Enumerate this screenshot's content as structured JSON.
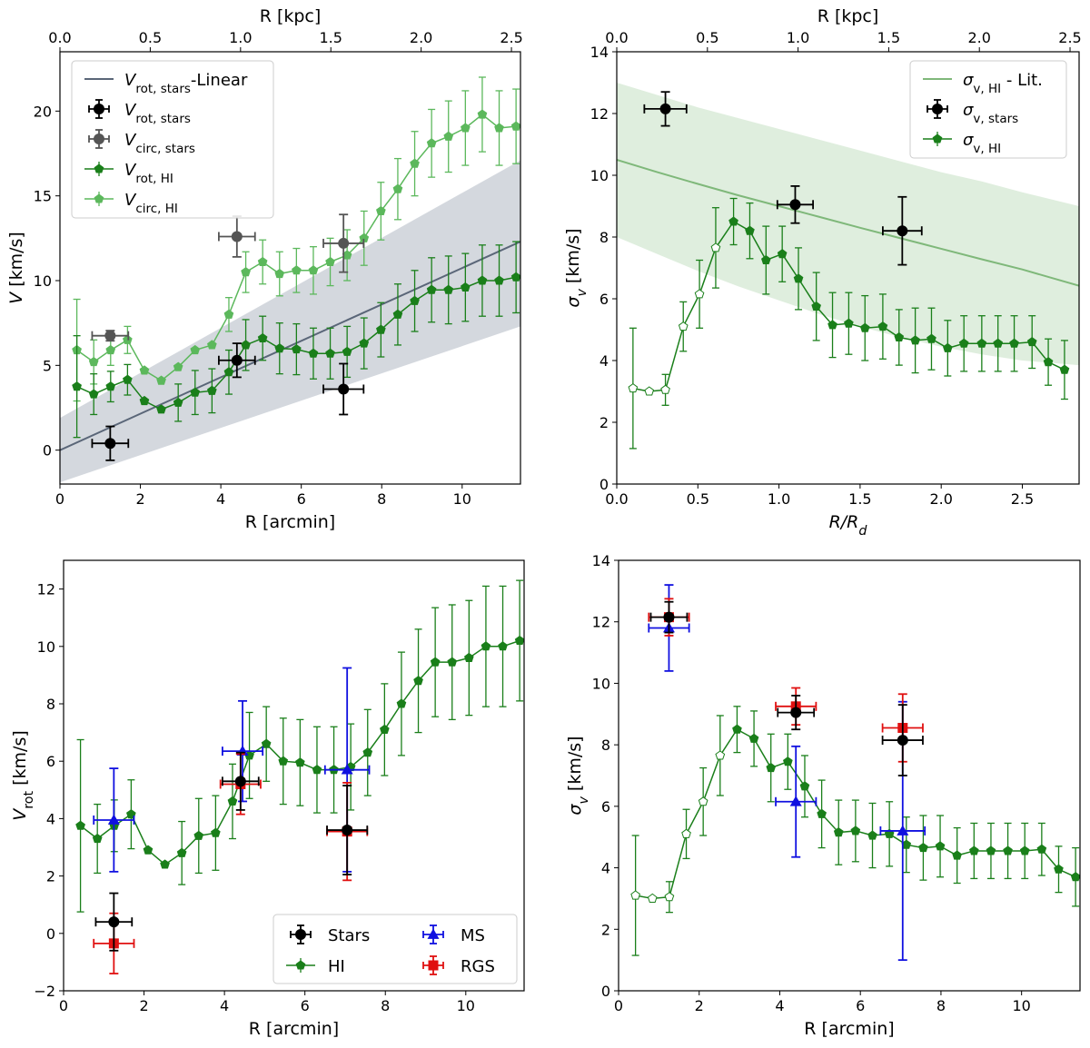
{
  "colors": {
    "hi": "#1a7f1a",
    "hi_circ": "#5cb85c",
    "stars": "#000000",
    "stars_circ": "#555555",
    "linear": "#5a6678",
    "band_gray": "#b8bec8",
    "band_green": "#b9d9b5",
    "lit_line": "#7fb87a",
    "ms": "#1010e0",
    "rgs": "#e01010"
  },
  "chart_data": [
    {
      "id": "p1",
      "type": "line",
      "xlabel": "R [arcmin]",
      "ylabel_main": "V [km/s]",
      "top_xlabel": "R [kpc]",
      "xlim": [
        0,
        11.45
      ],
      "ylim": [
        -2,
        23.5
      ],
      "xticks": [
        "0",
        "2",
        "4",
        "6",
        "8",
        "10"
      ],
      "xtick_values": [
        0,
        2,
        4,
        6,
        8,
        10
      ],
      "yticks": [
        "0",
        "5",
        "10",
        "15",
        "20"
      ],
      "ytick_values": [
        0,
        5,
        10,
        15,
        20
      ],
      "top_xlim": [
        0,
        2.55
      ],
      "top_xticks": [
        "0.0",
        "0.5",
        "1.0",
        "1.5",
        "2.0",
        "2.5"
      ],
      "top_xtick_values": [
        0,
        0.5,
        1.0,
        1.5,
        2.0,
        2.5
      ],
      "legend": {
        "position": "top-left",
        "entries": [
          {
            "kind": "line",
            "color": "linear",
            "label": "V",
            "sub": "rot, stars",
            "suffix": "-Linear"
          },
          {
            "kind": "errpoint",
            "color": "stars",
            "label": "V",
            "sub": "rot, stars"
          },
          {
            "kind": "errpoint",
            "color": "stars_circ",
            "label": "V",
            "sub": "circ, stars"
          },
          {
            "kind": "linepent",
            "color": "hi",
            "label": "V",
            "sub": "rot, HI"
          },
          {
            "kind": "linepent",
            "color": "hi_circ",
            "label": "V",
            "sub": "circ, HI"
          }
        ]
      },
      "band": {
        "color": "band_gray",
        "x": [
          0,
          11.45
        ],
        "lower": [
          -1.9,
          7.3
        ],
        "upper": [
          1.9,
          17.1
        ]
      },
      "fit_line": {
        "color": "linear",
        "x": [
          0,
          11.45
        ],
        "y": [
          0,
          12.3
        ]
      },
      "series": [
        {
          "name": "V_circ,HI",
          "color": "hi_circ",
          "x": [
            0.42,
            0.84,
            1.26,
            1.68,
            2.1,
            2.52,
            2.94,
            3.36,
            3.78,
            4.2,
            4.62,
            5.04,
            5.46,
            5.88,
            6.3,
            6.72,
            7.14,
            7.56,
            7.98,
            8.4,
            8.82,
            9.24,
            9.66,
            10.08,
            10.5,
            10.92,
            11.34
          ],
          "y": [
            5.9,
            5.2,
            5.9,
            6.5,
            4.7,
            4.1,
            4.9,
            5.9,
            6.2,
            8.0,
            10.5,
            11.1,
            10.4,
            10.6,
            10.6,
            11.1,
            11.5,
            12.5,
            14.1,
            15.4,
            16.9,
            18.1,
            18.5,
            19.0,
            19.8,
            19.0,
            19.1
          ],
          "err": [
            3.0,
            1.3,
            0.9,
            0.8,
            0.0,
            0.0,
            0.0,
            0.0,
            0.0,
            1.0,
            1.2,
            1.3,
            1.3,
            1.3,
            1.4,
            1.4,
            1.5,
            1.6,
            1.7,
            1.8,
            1.9,
            2.0,
            2.1,
            2.2,
            2.2,
            2.2,
            2.2
          ]
        },
        {
          "name": "V_rot,HI",
          "color": "hi",
          "x": [
            0.42,
            0.84,
            1.26,
            1.68,
            2.1,
            2.52,
            2.94,
            3.36,
            3.78,
            4.2,
            4.62,
            5.04,
            5.46,
            5.88,
            6.3,
            6.72,
            7.14,
            7.56,
            7.98,
            8.4,
            8.82,
            9.24,
            9.66,
            10.08,
            10.5,
            10.92,
            11.34
          ],
          "y": [
            3.75,
            3.3,
            3.75,
            4.15,
            2.9,
            2.4,
            2.8,
            3.4,
            3.5,
            4.6,
            6.2,
            6.6,
            6.0,
            5.95,
            5.7,
            5.7,
            5.8,
            6.3,
            7.1,
            8.0,
            8.8,
            9.45,
            9.45,
            9.6,
            10.0,
            10.0,
            10.2
          ],
          "err": [
            3.0,
            1.2,
            0.9,
            0.9,
            0.0,
            0.0,
            1.1,
            1.3,
            1.3,
            1.3,
            1.5,
            1.3,
            1.5,
            1.5,
            1.5,
            1.5,
            1.5,
            1.5,
            1.6,
            1.8,
            1.8,
            1.9,
            2.0,
            2.0,
            2.1,
            2.1,
            2.1
          ]
        },
        {
          "name": "V_circ,stars",
          "color": "stars_circ",
          "x": [
            1.25,
            4.4,
            7.05
          ],
          "y": [
            6.75,
            12.6,
            12.2
          ],
          "xerr": [
            0.45,
            0.45,
            0.5
          ],
          "yerr": [
            0.3,
            1.2,
            1.7
          ]
        },
        {
          "name": "V_rot,stars",
          "color": "stars",
          "x": [
            1.25,
            4.4,
            7.05
          ],
          "y": [
            0.4,
            5.3,
            3.6
          ],
          "xerr": [
            0.45,
            0.45,
            0.5
          ],
          "yerr": [
            1.0,
            1.0,
            1.5
          ]
        }
      ]
    },
    {
      "id": "p2",
      "type": "line",
      "xlabel": "R/R",
      "xlabel_sub": "d",
      "ylabel_main": "σ",
      "ylabel_sub": "v",
      "ylabel_suffix": " [km/s]",
      "top_xlabel": "R [kpc]",
      "xlim": [
        0,
        2.85
      ],
      "ylim": [
        0,
        14
      ],
      "xticks": [
        "0.0",
        "0.5",
        "1.0",
        "1.5",
        "2.0",
        "2.5"
      ],
      "xtick_values": [
        0,
        0.5,
        1.0,
        1.5,
        2.0,
        2.5
      ],
      "yticks": [
        "0",
        "2",
        "4",
        "6",
        "8",
        "10",
        "12",
        "14"
      ],
      "ytick_values": [
        0,
        2,
        4,
        6,
        8,
        10,
        12,
        14
      ],
      "top_xlim": [
        0,
        2.55
      ],
      "top_xticks": [
        "0.0",
        "0.5",
        "1.0",
        "1.5",
        "2.0",
        "2.5"
      ],
      "top_xtick_values": [
        0,
        0.5,
        1.0,
        1.5,
        2.0,
        2.5
      ],
      "legend": {
        "position": "top-right",
        "entries": [
          {
            "kind": "line",
            "color": "lit_line",
            "label": "σ",
            "sub": "v, HI",
            "suffix": " - Lit."
          },
          {
            "kind": "errpoint",
            "color": "stars",
            "label": "σ",
            "sub": "v, stars"
          },
          {
            "kind": "linepent",
            "color": "hi",
            "label": "σ",
            "sub": "v, HI"
          }
        ]
      },
      "lit_curve": {
        "color": "lit_line",
        "x": [
          0,
          0.25,
          0.5,
          0.75,
          1.0,
          1.25,
          1.5,
          1.75,
          2.0,
          2.25,
          2.5,
          2.85
        ],
        "y": [
          10.5,
          10.1,
          9.72,
          9.35,
          9.0,
          8.65,
          8.3,
          7.96,
          7.62,
          7.28,
          6.95,
          6.42
        ]
      },
      "lit_band": {
        "color": "band_green",
        "x": [
          0,
          0.25,
          0.5,
          0.75,
          1.0,
          1.25,
          1.5,
          1.75,
          2.0,
          2.25,
          2.5,
          2.85
        ],
        "lower": [
          8.0,
          7.45,
          6.9,
          6.4,
          5.95,
          5.5,
          5.1,
          4.75,
          4.45,
          4.2,
          4.0,
          3.85
        ],
        "upper": [
          13.0,
          12.6,
          12.2,
          11.85,
          11.5,
          11.15,
          10.8,
          10.45,
          10.1,
          9.8,
          9.45,
          9.0
        ]
      },
      "series": [
        {
          "name": "sigma_v,HI",
          "color": "hi",
          "x": [
            0.1,
            0.2,
            0.3,
            0.41,
            0.51,
            0.61,
            0.72,
            0.82,
            0.92,
            1.02,
            1.12,
            1.23,
            1.33,
            1.43,
            1.53,
            1.64,
            1.74,
            1.84,
            1.94,
            2.04,
            2.14,
            2.25,
            2.35,
            2.45,
            2.56,
            2.66,
            2.76
          ],
          "y": [
            3.1,
            3.0,
            3.05,
            5.1,
            6.15,
            7.65,
            8.5,
            8.2,
            7.25,
            7.45,
            6.65,
            5.75,
            5.15,
            5.2,
            5.05,
            5.1,
            4.75,
            4.65,
            4.7,
            4.4,
            4.55,
            4.55,
            4.55,
            4.55,
            4.6,
            3.95,
            3.7
          ],
          "err": [
            1.95,
            0.0,
            0.5,
            0.8,
            1.1,
            1.3,
            0.75,
            0.9,
            1.1,
            0.9,
            1.0,
            1.1,
            1.05,
            1.0,
            1.05,
            1.05,
            0.9,
            1.05,
            1.0,
            0.9,
            0.9,
            0.9,
            0.9,
            0.9,
            0.85,
            0.75,
            0.95
          ],
          "hollow_count": 6
        },
        {
          "name": "sigma_v,stars",
          "color": "stars",
          "x": [
            0.3,
            1.1,
            1.76
          ],
          "y": [
            12.15,
            9.05,
            8.2
          ],
          "xerr": [
            0.13,
            0.11,
            0.12
          ],
          "yerr": [
            0.55,
            0.6,
            1.1
          ]
        }
      ]
    },
    {
      "id": "p3",
      "type": "line",
      "xlabel": "R [arcmin]",
      "ylabel_main": "V",
      "ylabel_sub": "rot",
      "ylabel_suffix": " [km/s]",
      "xlim": [
        0,
        11.45
      ],
      "ylim": [
        -2,
        13
      ],
      "xticks": [
        "0",
        "2",
        "4",
        "6",
        "8",
        "10"
      ],
      "xtick_values": [
        0,
        2,
        4,
        6,
        8,
        10
      ],
      "yticks": [
        "−2",
        "0",
        "2",
        "4",
        "6",
        "8",
        "10",
        "12"
      ],
      "ytick_values": [
        -2,
        0,
        2,
        4,
        6,
        8,
        10,
        12
      ],
      "legend": {
        "position": "bottom-right",
        "entries": [
          {
            "kind": "errpoint",
            "color": "stars",
            "label": "Stars"
          },
          {
            "kind": "errtri",
            "color": "ms",
            "label": "MS"
          },
          {
            "kind": "linepent",
            "color": "hi",
            "label": "HI"
          },
          {
            "kind": "errsq",
            "color": "rgs",
            "label": "RGS"
          }
        ]
      },
      "series": [
        {
          "name": "HI",
          "color": "hi",
          "x": [
            0.42,
            0.84,
            1.26,
            1.68,
            2.1,
            2.52,
            2.94,
            3.36,
            3.78,
            4.2,
            4.62,
            5.04,
            5.46,
            5.88,
            6.3,
            6.72,
            7.14,
            7.56,
            7.98,
            8.4,
            8.82,
            9.24,
            9.66,
            10.08,
            10.5,
            10.92,
            11.34
          ],
          "y": [
            3.75,
            3.3,
            3.75,
            4.15,
            2.9,
            2.4,
            2.8,
            3.4,
            3.5,
            4.6,
            6.2,
            6.6,
            6.0,
            5.95,
            5.7,
            5.7,
            5.8,
            6.3,
            7.1,
            8.0,
            8.8,
            9.45,
            9.45,
            9.6,
            10.0,
            10.0,
            10.2
          ],
          "err": [
            3.0,
            1.2,
            0.9,
            1.2,
            0.0,
            0.0,
            1.1,
            1.3,
            1.3,
            1.3,
            1.5,
            1.3,
            1.5,
            1.5,
            1.5,
            1.5,
            1.5,
            1.5,
            1.6,
            1.8,
            1.8,
            1.9,
            2.0,
            2.0,
            2.1,
            2.1,
            2.1
          ]
        },
        {
          "name": "MS",
          "color": "ms",
          "marker": "triangle",
          "x": [
            1.25,
            4.45,
            7.05
          ],
          "y": [
            3.95,
            6.35,
            5.7
          ],
          "xerr": [
            0.5,
            0.5,
            0.55
          ],
          "yerr": [
            1.8,
            1.75,
            3.55
          ]
        },
        {
          "name": "RGS",
          "color": "rgs",
          "marker": "square",
          "x": [
            1.25,
            4.4,
            7.05
          ],
          "y": [
            -0.35,
            5.2,
            3.55
          ],
          "xerr": [
            0.5,
            0.5,
            0.5
          ],
          "yerr": [
            1.05,
            1.05,
            1.7
          ]
        },
        {
          "name": "Stars",
          "color": "stars",
          "marker": "circle",
          "x": [
            1.25,
            4.4,
            7.05
          ],
          "y": [
            0.4,
            5.3,
            3.6
          ],
          "xerr": [
            0.45,
            0.45,
            0.5
          ],
          "yerr": [
            1.0,
            1.0,
            1.55
          ]
        }
      ]
    },
    {
      "id": "p4",
      "type": "line",
      "xlabel": "R [arcmin]",
      "ylabel_main": "σ",
      "ylabel_sub": "v",
      "ylabel_suffix": " [km/s]",
      "xlim": [
        0,
        11.45
      ],
      "ylim": [
        0,
        14
      ],
      "xticks": [
        "0",
        "2",
        "4",
        "6",
        "8",
        "10"
      ],
      "xtick_values": [
        0,
        2,
        4,
        6,
        8,
        10
      ],
      "yticks": [
        "0",
        "2",
        "4",
        "6",
        "8",
        "10",
        "12",
        "14"
      ],
      "ytick_values": [
        0,
        2,
        4,
        6,
        8,
        10,
        12,
        14
      ],
      "series": [
        {
          "name": "HI",
          "color": "hi",
          "x": [
            0.42,
            0.84,
            1.26,
            1.68,
            2.1,
            2.52,
            2.94,
            3.36,
            3.78,
            4.2,
            4.62,
            5.04,
            5.46,
            5.88,
            6.3,
            6.72,
            7.14,
            7.56,
            7.98,
            8.4,
            8.82,
            9.24,
            9.66,
            10.08,
            10.5,
            10.92,
            11.34
          ],
          "y": [
            3.1,
            3.0,
            3.05,
            5.1,
            6.15,
            7.65,
            8.5,
            8.2,
            7.25,
            7.45,
            6.65,
            5.75,
            5.15,
            5.2,
            5.05,
            5.1,
            4.75,
            4.65,
            4.7,
            4.4,
            4.55,
            4.55,
            4.55,
            4.55,
            4.6,
            3.95,
            3.7
          ],
          "err": [
            1.95,
            0.0,
            0.5,
            0.8,
            1.1,
            1.3,
            0.75,
            0.9,
            1.1,
            0.9,
            1.0,
            1.1,
            1.05,
            1.0,
            1.05,
            1.05,
            0.9,
            1.05,
            1.0,
            0.9,
            0.9,
            0.9,
            0.9,
            0.9,
            0.85,
            0.75,
            0.95
          ],
          "hollow_count": 6
        },
        {
          "name": "MS",
          "color": "ms",
          "marker": "triangle",
          "x": [
            1.25,
            4.4,
            7.05
          ],
          "y": [
            11.8,
            6.15,
            5.2
          ],
          "xerr": [
            0.5,
            0.5,
            0.55
          ],
          "yerr": [
            1.4,
            1.8,
            4.2
          ]
        },
        {
          "name": "RGS",
          "color": "rgs",
          "marker": "square",
          "x": [
            1.25,
            4.4,
            7.05
          ],
          "y": [
            12.15,
            9.25,
            8.55
          ],
          "xerr": [
            0.5,
            0.5,
            0.5
          ],
          "yerr": [
            0.6,
            0.6,
            1.1
          ]
        },
        {
          "name": "Stars",
          "color": "stars",
          "marker": "circle",
          "x": [
            1.25,
            4.4,
            7.05
          ],
          "y": [
            12.15,
            9.05,
            8.15
          ],
          "xerr": [
            0.45,
            0.45,
            0.5
          ],
          "yerr": [
            0.5,
            0.55,
            1.15
          ]
        }
      ]
    }
  ]
}
